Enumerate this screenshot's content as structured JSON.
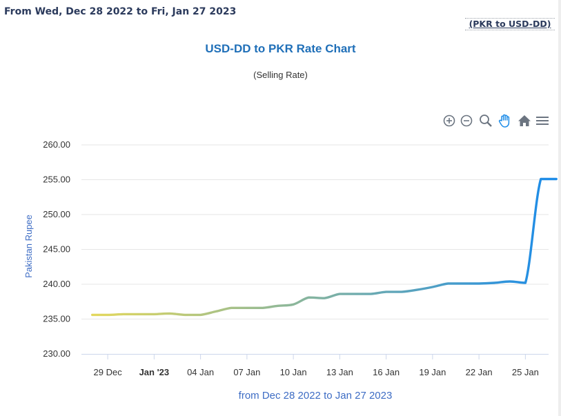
{
  "header": {
    "date_range": "From Wed, Dec 28 2022 to Fri, Jan 27 2023",
    "swap_link": "(PKR to USD-DD)"
  },
  "toolbar": {
    "icons": [
      "zoom-in-icon",
      "zoom-out-icon",
      "selection-zoom-icon",
      "pan-hand-icon",
      "home-reset-icon",
      "menu-icon"
    ]
  },
  "colors": {
    "title": "#1f6fb8",
    "axis_title": "#3d6cc4",
    "line_start": "#e8da5a",
    "line_end": "#1d8ce8",
    "grid": "#e6e6e6"
  },
  "chart_data": {
    "type": "line",
    "title": "USD-DD to PKR Rate Chart",
    "subtitle": "(Selling Rate)",
    "ylabel": "Pakistan Rupee",
    "xlabel": "from Dec 28 2022 to Jan 27 2023",
    "ylim": [
      230,
      260
    ],
    "yticks": [
      230,
      235,
      240,
      245,
      250,
      255,
      260
    ],
    "ytick_labels": [
      "230.00",
      "235.00",
      "240.00",
      "245.00",
      "250.00",
      "255.00",
      "260.00"
    ],
    "xlim": [
      -1.7,
      28.5
    ],
    "xticks": [
      {
        "day": 0,
        "label": "29 Dec",
        "bold": false
      },
      {
        "day": 3,
        "label": "Jan '23",
        "bold": true
      },
      {
        "day": 6,
        "label": "04 Jan",
        "bold": false
      },
      {
        "day": 9,
        "label": "07 Jan",
        "bold": false
      },
      {
        "day": 12,
        "label": "10 Jan",
        "bold": false
      },
      {
        "day": 15,
        "label": "13 Jan",
        "bold": false
      },
      {
        "day": 18,
        "label": "16 Jan",
        "bold": false
      },
      {
        "day": 21,
        "label": "19 Jan",
        "bold": false
      },
      {
        "day": 24,
        "label": "22 Jan",
        "bold": false
      },
      {
        "day": 27,
        "label": "25 Jan",
        "bold": false
      }
    ],
    "series": [
      {
        "name": "USD-DD to PKR",
        "x_day_offset_from_29_Dec": [
          -1,
          0,
          1,
          2,
          3,
          4,
          5,
          6,
          7,
          8,
          9,
          10,
          11,
          12,
          13,
          14,
          15,
          16,
          17,
          18,
          19,
          20,
          21,
          22,
          23,
          24,
          25,
          26,
          27,
          28,
          29
        ],
        "values": [
          235.6,
          235.6,
          235.7,
          235.7,
          235.7,
          235.8,
          235.6,
          235.6,
          236.1,
          236.6,
          236.6,
          236.6,
          236.9,
          237.1,
          238.1,
          238.0,
          238.6,
          238.6,
          238.6,
          238.9,
          238.9,
          239.2,
          239.6,
          240.1,
          240.1,
          240.1,
          240.2,
          240.4,
          240.2,
          255.1,
          255.1
        ]
      }
    ]
  }
}
